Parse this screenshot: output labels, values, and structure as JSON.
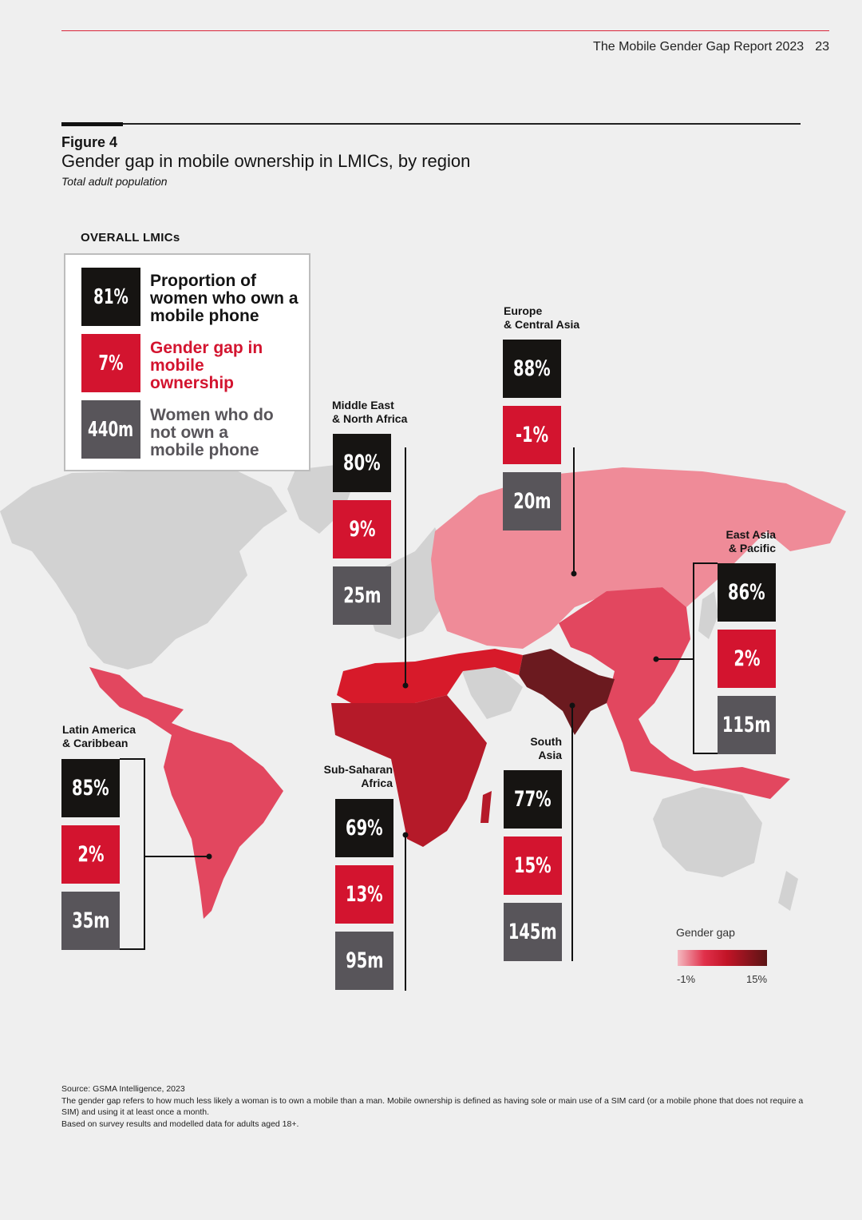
{
  "header": {
    "report_title": "The Mobile Gender Gap Report 2023",
    "page_number": "23"
  },
  "figure": {
    "label": "Figure 4",
    "title": "Gender gap in mobile ownership in LMICs, by region",
    "subtitle": "Total adult population"
  },
  "overall": {
    "title": "OVERALL LMICs",
    "items": [
      {
        "value": "81%",
        "label": "Proportion of women who own a mobile phone",
        "color": "#161412"
      },
      {
        "value": "7%",
        "label": "Gender gap in mobile ownership",
        "color": "#d3142f"
      },
      {
        "value": "440m",
        "label": "Women who do not own a mobile phone",
        "color": "#58555a"
      }
    ]
  },
  "regions": [
    {
      "name": "Europe & Central Asia",
      "line1": "Europe",
      "line2": "& Central Asia",
      "ownership": "88%",
      "gap": "-1%",
      "unconnected": "20m",
      "map_color": "#ef8b98"
    },
    {
      "name": "Middle East & North Africa",
      "line1": "Middle East",
      "line2": "& North Africa",
      "ownership": "80%",
      "gap": "9%",
      "unconnected": "25m",
      "map_color": "#d71a2a"
    },
    {
      "name": "East Asia & Pacific",
      "line1": "East Asia",
      "line2": "& Pacific",
      "ownership": "86%",
      "gap": "2%",
      "unconnected": "115m",
      "map_color": "#e2475f"
    },
    {
      "name": "Latin America & Caribbean",
      "line1": "Latin America",
      "line2": "& Caribbean",
      "ownership": "85%",
      "gap": "2%",
      "unconnected": "35m",
      "map_color": "#e2475f"
    },
    {
      "name": "Sub-Saharan Africa",
      "line1": "Sub-Saharan",
      "line2": "Africa",
      "ownership": "69%",
      "gap": "13%",
      "unconnected": "95m",
      "map_color": "#b51a29"
    },
    {
      "name": "South Asia",
      "line1": "South",
      "line2": "Asia",
      "ownership": "77%",
      "gap": "15%",
      "unconnected": "145m",
      "map_color": "#6b1a1f"
    }
  ],
  "legend": {
    "title": "Gender gap",
    "min_label": "-1%",
    "max_label": "15%",
    "min_color": "#f4b8c0",
    "max_color": "#5a1414"
  },
  "notes": {
    "source": "Source: GSMA Intelligence, 2023",
    "definition": "The gender gap refers to how much less likely a woman is to own a mobile than a man. Mobile ownership is defined as having sole or main use of a SIM card (or a mobile phone that does not require a SIM) and using it at least once a month.",
    "basis": "Based on survey results and modelled data for adults aged 18+."
  },
  "map_colors": {
    "non_lmic": "#d2d2d2",
    "leader_line": "#111111"
  }
}
